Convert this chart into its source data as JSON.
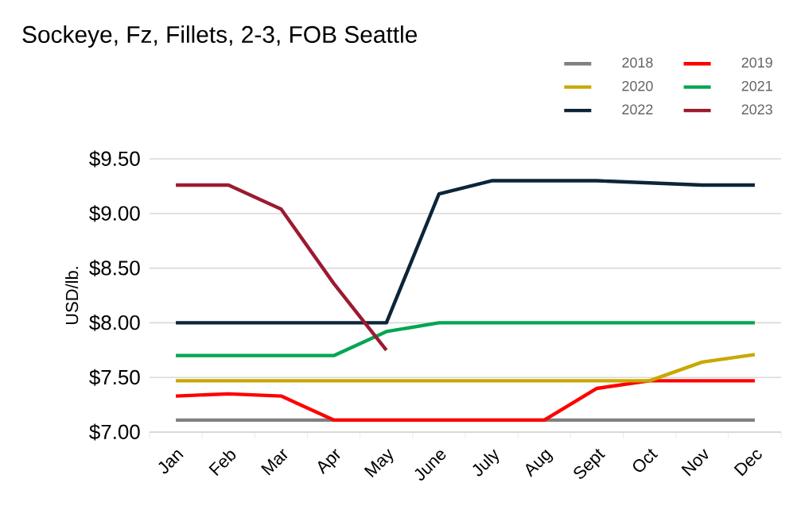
{
  "chart_data": {
    "type": "line",
    "title": "Sockeye, Fz, Fillets, 2-3, FOB Seattle",
    "ylabel": "USD/lb.",
    "categories": [
      "Jan",
      "Feb",
      "Mar",
      "Apr",
      "May",
      "June",
      "July",
      "Aug",
      "Sept",
      "Oct",
      "Nov",
      "Dec"
    ],
    "ylim": [
      7,
      9.5
    ],
    "yticks": [
      {
        "value": 7,
        "label": "$7.00"
      },
      {
        "value": 7.5,
        "label": "$7.50"
      },
      {
        "value": 8,
        "label": "$8.00"
      },
      {
        "value": 8.5,
        "label": "$8.50"
      },
      {
        "value": 9,
        "label": "$9.00"
      },
      {
        "value": 9.5,
        "label": "$9.50"
      }
    ],
    "grid": "y",
    "legend": "top right",
    "marker": "none",
    "line_style": "solid",
    "series": [
      {
        "name": "2018",
        "color": "#808080",
        "values": [
          7.11,
          7.11,
          7.11,
          7.11,
          null,
          null,
          null,
          7.11,
          7.11,
          7.11,
          7.11,
          7.11
        ]
      },
      {
        "name": "2019",
        "color": "#ff0000",
        "values": [
          7.33,
          7.35,
          7.33,
          7.11,
          7.11,
          7.11,
          7.11,
          7.11,
          7.4,
          7.47,
          7.47,
          7.47
        ]
      },
      {
        "name": "2020",
        "color": "#c9a800",
        "values": [
          7.47,
          7.47,
          7.47,
          7.47,
          7.47,
          7.47,
          7.47,
          7.47,
          7.47,
          7.47,
          7.64,
          7.71
        ]
      },
      {
        "name": "2021",
        "color": "#00a651",
        "values": [
          7.7,
          7.7,
          7.7,
          7.7,
          7.92,
          8.0,
          8.0,
          8.0,
          8.0,
          8.0,
          8.0,
          8.0
        ]
      },
      {
        "name": "2022",
        "color": "#0d2538",
        "values": [
          8.0,
          8.0,
          8.0,
          8.0,
          8.0,
          9.18,
          9.3,
          9.3,
          9.3,
          9.28,
          9.26,
          9.26
        ]
      },
      {
        "name": "2023",
        "color": "#9b1b30",
        "values": [
          9.26,
          9.26,
          9.04,
          8.36,
          7.75,
          null,
          null,
          null,
          null,
          null,
          null,
          null
        ]
      }
    ]
  }
}
